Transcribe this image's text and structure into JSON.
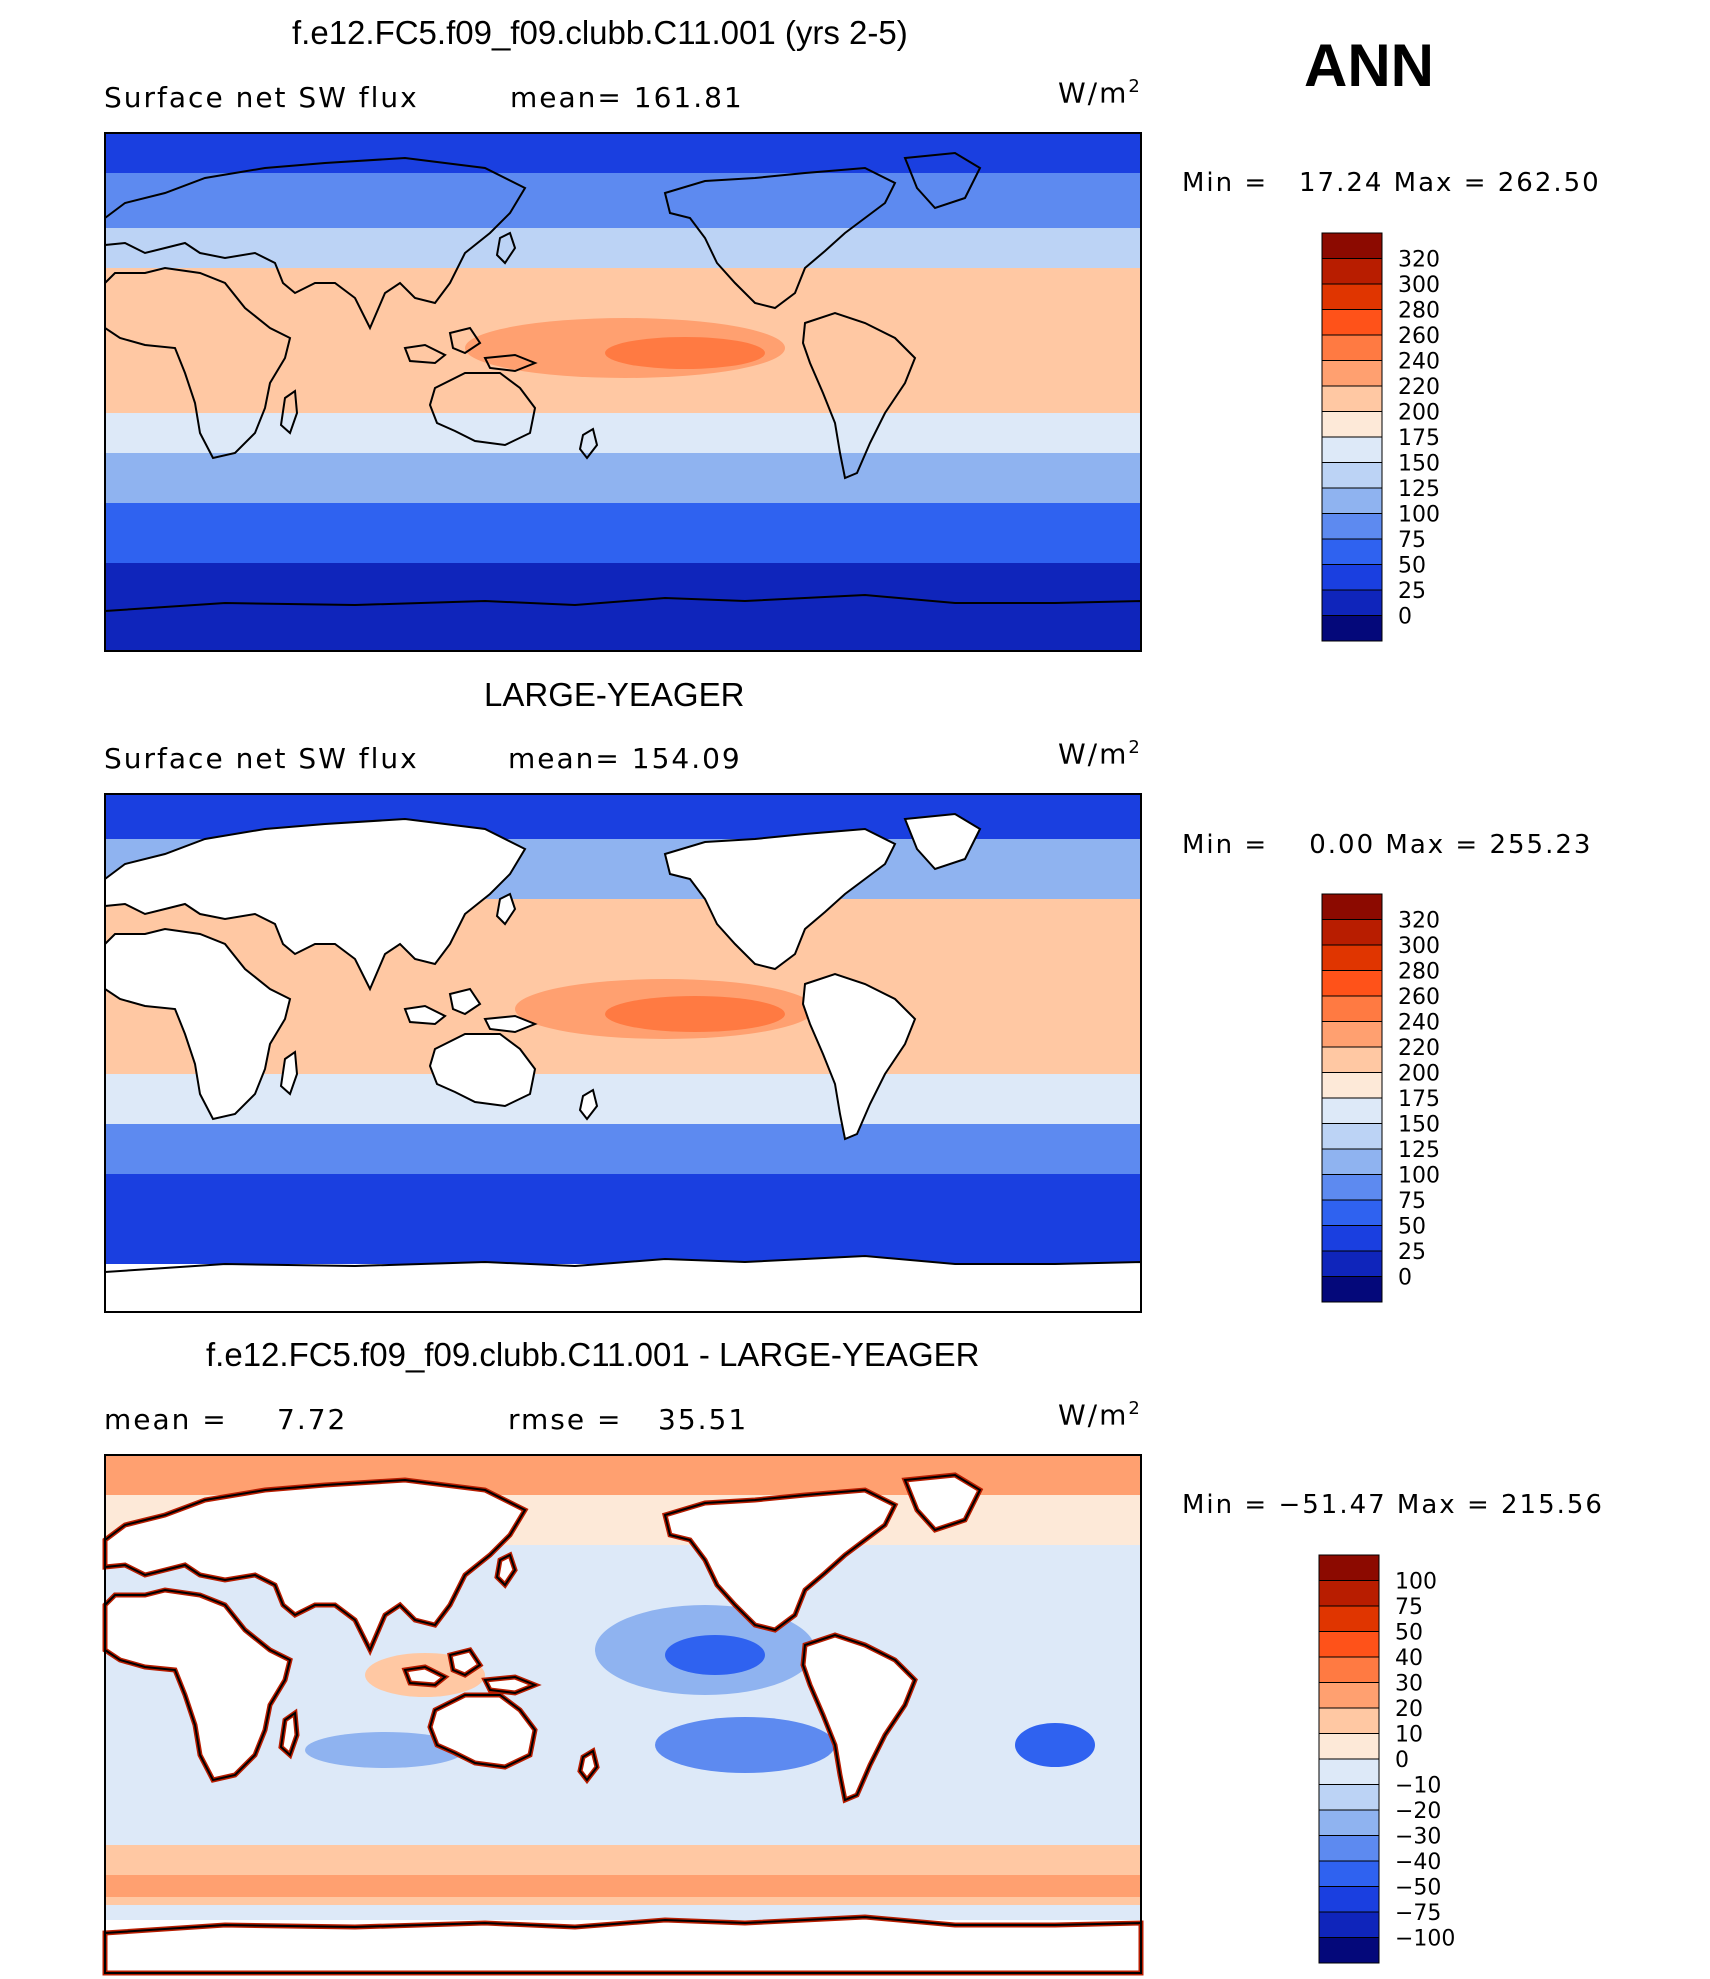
{
  "season": "ANN",
  "panels": [
    {
      "title": "f.e12.FC5.f09_f09.clubb.C11.001 (yrs 2-5)",
      "left_label": "Surface net SW flux",
      "center_label": "mean= 161.81",
      "units": "W/m",
      "units_sup": "2",
      "minmax": "Min =   17.24 Max = 262.50"
    },
    {
      "title": "LARGE-YEAGER",
      "left_label": "Surface net SW flux",
      "center_label": "mean= 154.09",
      "units": "W/m",
      "units_sup": "2",
      "minmax": "Min =    0.00 Max = 255.23"
    },
    {
      "title": "f.e12.FC5.f09_f09.clubb.C11.001 - LARGE-YEAGER",
      "left_label": "mean =",
      "left_value": "7.72",
      "center_label": "rmse =",
      "center_value": "35.51",
      "units": "W/m",
      "units_sup": "2",
      "minmax": "Min = −51.47 Max = 215.56"
    }
  ],
  "chart_data": [
    {
      "type": "heatmap",
      "title": "f.e12.FC5.f09_f09.clubb.C11.001 (yrs 2-5)",
      "variable": "Surface net SW flux",
      "units": "W/m2",
      "mean": 161.81,
      "min": 17.24,
      "max": 262.5,
      "colorbar": {
        "levels": [
          "320",
          "300",
          "280",
          "260",
          "240",
          "220",
          "200",
          "175",
          "150",
          "125",
          "100",
          "75",
          "50",
          "25",
          "0"
        ],
        "colors": [
          "#8c0a00",
          "#b81d00",
          "#e03500",
          "#ff5219",
          "#ff7a42",
          "#ffa070",
          "#ffc8a3",
          "#fde9d8",
          "#dde9f8",
          "#bcd3f5",
          "#8fb3f0",
          "#5d8af0",
          "#2f62f0",
          "#1a3fe0",
          "#0f25bb",
          "#04087a"
        ]
      }
    },
    {
      "type": "heatmap",
      "title": "LARGE-YEAGER",
      "variable": "Surface net SW flux",
      "units": "W/m2",
      "mean": 154.09,
      "min": 0.0,
      "max": 255.23,
      "colorbar": {
        "levels": [
          "320",
          "300",
          "280",
          "260",
          "240",
          "220",
          "200",
          "175",
          "150",
          "125",
          "100",
          "75",
          "50",
          "25",
          "0"
        ],
        "colors": [
          "#8c0a00",
          "#b81d00",
          "#e03500",
          "#ff5219",
          "#ff7a42",
          "#ffa070",
          "#ffc8a3",
          "#fde9d8",
          "#dde9f8",
          "#bcd3f5",
          "#8fb3f0",
          "#5d8af0",
          "#2f62f0",
          "#1a3fe0",
          "#0f25bb",
          "#04087a"
        ]
      }
    },
    {
      "type": "heatmap",
      "title": "f.e12.FC5.f09_f09.clubb.C11.001 - LARGE-YEAGER",
      "units": "W/m2",
      "mean": 7.72,
      "rmse": 35.51,
      "min": -51.47,
      "max": 215.56,
      "colorbar": {
        "levels": [
          "100",
          "75",
          "50",
          "40",
          "30",
          "20",
          "10",
          "0",
          "−10",
          "−20",
          "−30",
          "−40",
          "−50",
          "−75",
          "−100"
        ],
        "colors": [
          "#8c0a00",
          "#b81d00",
          "#e03500",
          "#ff5219",
          "#ff7a42",
          "#ffa070",
          "#ffc8a3",
          "#fde9d8",
          "#dde9f8",
          "#bcd3f5",
          "#8fb3f0",
          "#5d8af0",
          "#2f62f0",
          "#1a3fe0",
          "#0f25bb",
          "#04087a"
        ]
      }
    }
  ]
}
